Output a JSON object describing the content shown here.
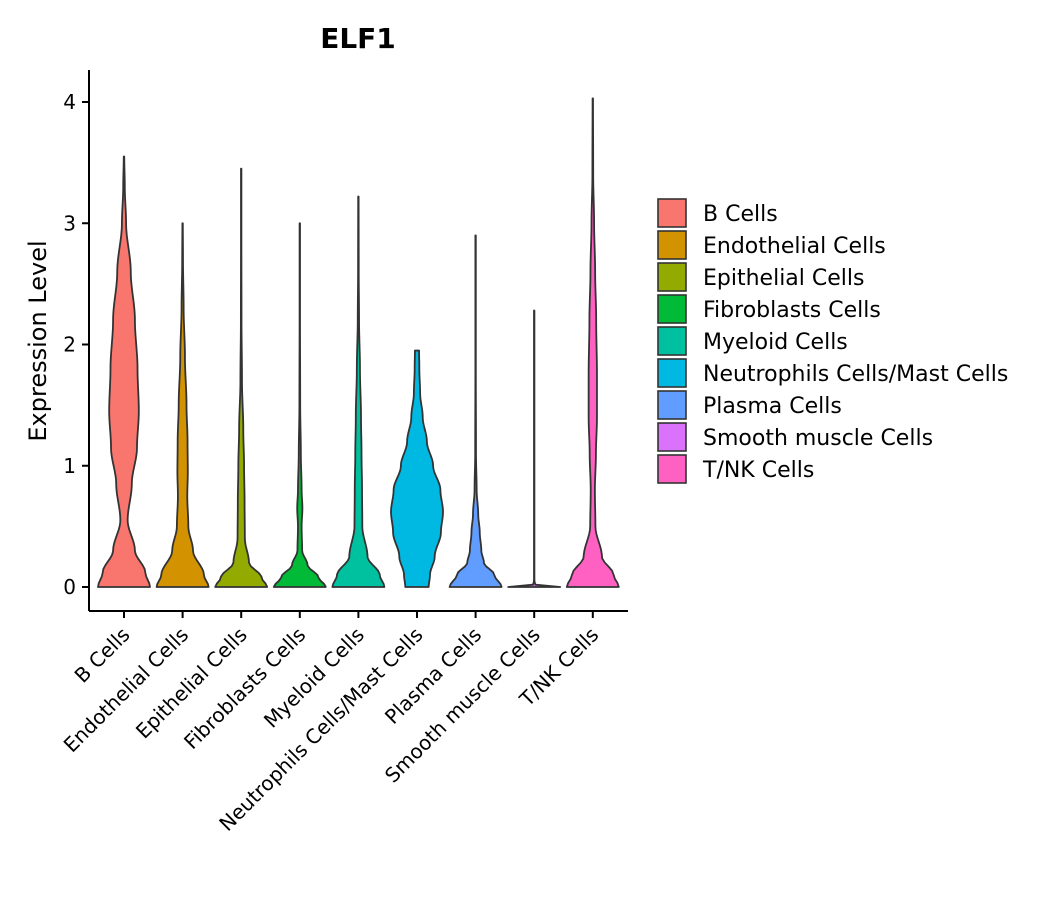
{
  "chart_data": {
    "type": "violin",
    "title": "ELF1",
    "xlabel": "",
    "ylabel": "Expression Level",
    "ylim": [
      -0.2,
      4.25
    ],
    "yticks": [
      0,
      1,
      2,
      3,
      4
    ],
    "ytick_labels": [
      "0",
      "1",
      "2",
      "3",
      "4"
    ],
    "legend_position": "right",
    "categories": [
      "B Cells",
      "Endothelial Cells",
      "Epithelial Cells",
      "Fibroblasts Cells",
      "Myeloid Cells",
      "Neutrophils Cells/Mast Cells",
      "Plasma Cells",
      "Smooth muscle Cells",
      "T/NK Cells"
    ],
    "colors": [
      "#F8766D",
      "#D39200",
      "#93AA00",
      "#00BA38",
      "#00C19F",
      "#00B9E3",
      "#619CFF",
      "#DB72FB",
      "#FF61C3"
    ],
    "series": [
      {
        "name": "B Cells",
        "max": 3.55,
        "profile": [
          [
            0,
            1.0
          ],
          [
            0.12,
            0.82
          ],
          [
            0.3,
            0.42
          ],
          [
            0.55,
            0.14
          ],
          [
            0.85,
            0.3
          ],
          [
            1.15,
            0.5
          ],
          [
            1.45,
            0.57
          ],
          [
            1.8,
            0.52
          ],
          [
            2.2,
            0.42
          ],
          [
            2.6,
            0.26
          ],
          [
            3.0,
            0.08
          ],
          [
            3.3,
            0.03
          ],
          [
            3.55,
            0.01
          ]
        ]
      },
      {
        "name": "Endothelial Cells",
        "max": 3.0,
        "profile": [
          [
            0,
            1.0
          ],
          [
            0.1,
            0.82
          ],
          [
            0.3,
            0.4
          ],
          [
            0.5,
            0.22
          ],
          [
            0.75,
            0.18
          ],
          [
            0.95,
            0.2
          ],
          [
            1.2,
            0.19
          ],
          [
            1.5,
            0.15
          ],
          [
            1.9,
            0.09
          ],
          [
            2.3,
            0.04
          ],
          [
            2.7,
            0.015
          ],
          [
            3.0,
            0.008
          ]
        ]
      },
      {
        "name": "Epithelial Cells",
        "max": 3.45,
        "profile": [
          [
            0,
            1.0
          ],
          [
            0.08,
            0.78
          ],
          [
            0.2,
            0.3
          ],
          [
            0.4,
            0.14
          ],
          [
            0.7,
            0.13
          ],
          [
            1.0,
            0.11
          ],
          [
            1.3,
            0.08
          ],
          [
            1.7,
            0.03
          ],
          [
            2.2,
            0.012
          ],
          [
            2.8,
            0.008
          ],
          [
            3.45,
            0.008
          ]
        ]
      },
      {
        "name": "Fibroblasts Cells",
        "max": 3.0,
        "profile": [
          [
            0,
            1.0
          ],
          [
            0.08,
            0.72
          ],
          [
            0.18,
            0.3
          ],
          [
            0.3,
            0.09
          ],
          [
            0.5,
            0.07
          ],
          [
            0.65,
            0.1
          ],
          [
            0.8,
            0.07
          ],
          [
            1.1,
            0.04
          ],
          [
            1.5,
            0.015
          ],
          [
            2.2,
            0.008
          ],
          [
            3.0,
            0.008
          ]
        ]
      },
      {
        "name": "Myeloid Cells",
        "max": 3.22,
        "profile": [
          [
            0,
            1.0
          ],
          [
            0.1,
            0.82
          ],
          [
            0.25,
            0.35
          ],
          [
            0.5,
            0.15
          ],
          [
            0.8,
            0.14
          ],
          [
            1.1,
            0.12
          ],
          [
            1.4,
            0.1
          ],
          [
            1.8,
            0.06
          ],
          [
            2.2,
            0.025
          ],
          [
            2.6,
            0.012
          ],
          [
            3.22,
            0.008
          ]
        ]
      },
      {
        "name": "Neutrophils Cells/Mast Cells",
        "max": 1.95,
        "profile": [
          [
            0,
            0.45
          ],
          [
            0.1,
            0.5
          ],
          [
            0.25,
            0.68
          ],
          [
            0.45,
            0.92
          ],
          [
            0.62,
            1.0
          ],
          [
            0.8,
            0.9
          ],
          [
            1.0,
            0.62
          ],
          [
            1.2,
            0.38
          ],
          [
            1.4,
            0.22
          ],
          [
            1.6,
            0.12
          ],
          [
            1.8,
            0.09
          ],
          [
            1.95,
            0.08
          ]
        ]
      },
      {
        "name": "Plasma Cells",
        "max": 2.9,
        "profile": [
          [
            0,
            1.0
          ],
          [
            0.1,
            0.72
          ],
          [
            0.2,
            0.32
          ],
          [
            0.3,
            0.22
          ],
          [
            0.45,
            0.16
          ],
          [
            0.6,
            0.1
          ],
          [
            0.8,
            0.04
          ],
          [
            1.1,
            0.015
          ],
          [
            1.8,
            0.008
          ],
          [
            2.9,
            0.008
          ]
        ]
      },
      {
        "name": "Smooth muscle Cells",
        "max": 2.28,
        "profile": [
          [
            0,
            1.0
          ],
          [
            0.02,
            0.04
          ],
          [
            0.05,
            0.008
          ],
          [
            2.28,
            0.008
          ]
        ]
      },
      {
        "name": "T/NK Cells",
        "max": 4.03,
        "profile": [
          [
            0,
            1.0
          ],
          [
            0.1,
            0.8
          ],
          [
            0.25,
            0.35
          ],
          [
            0.5,
            0.1
          ],
          [
            0.8,
            0.08
          ],
          [
            1.1,
            0.12
          ],
          [
            1.4,
            0.16
          ],
          [
            1.75,
            0.16
          ],
          [
            2.2,
            0.13
          ],
          [
            2.6,
            0.09
          ],
          [
            3.0,
            0.05
          ],
          [
            3.4,
            0.015
          ],
          [
            4.03,
            0.008
          ]
        ]
      }
    ]
  }
}
